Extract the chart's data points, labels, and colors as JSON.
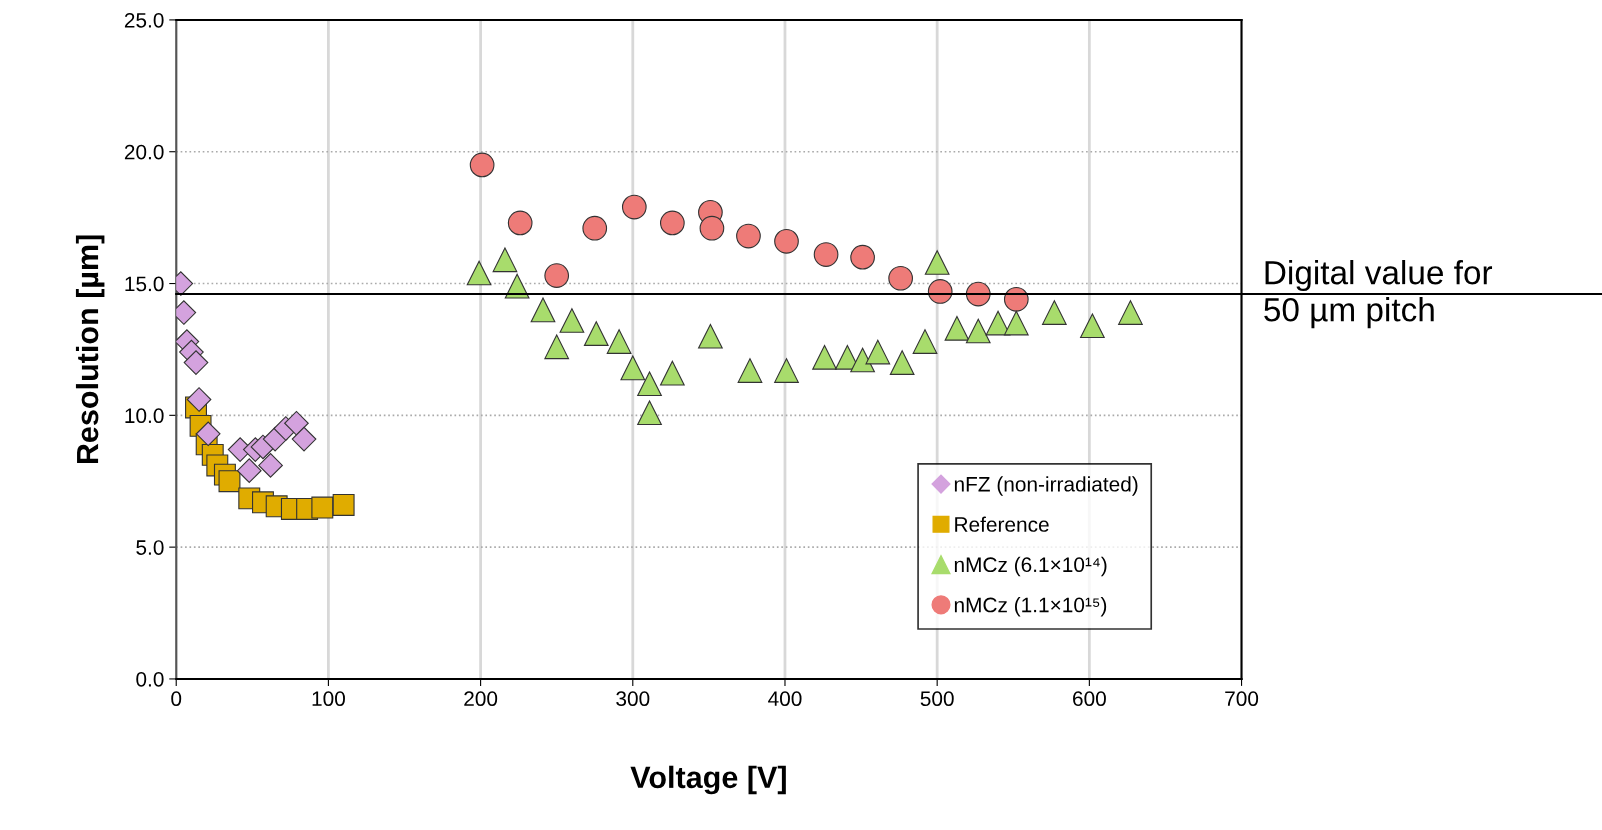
{
  "chart_data": {
    "type": "scatter",
    "xlabel": "Voltage [V]",
    "ylabel": "Resolution [µm]",
    "xlim": [
      0,
      700
    ],
    "xticks": [
      0,
      100,
      200,
      300,
      400,
      500,
      600,
      700
    ],
    "ylim": [
      0,
      25
    ],
    "yticks": [
      {
        "value": 0,
        "label": "0.0"
      },
      {
        "value": 5,
        "label": "5.0"
      },
      {
        "value": 10,
        "label": "10.0"
      },
      {
        "value": 15,
        "label": "15.0"
      },
      {
        "value": 20,
        "label": "20.0"
      },
      {
        "value": 25,
        "label": "25.0"
      }
    ],
    "grid": true,
    "legend": "bottom right",
    "ref_lines": [
      {
        "axis": "y",
        "value": 14.6,
        "label": "Digital value for\n50 µm pitch",
        "color": "#000000",
        "line_style": "solid"
      }
    ],
    "series": [
      {
        "name": "nFZ (non-irradiated)",
        "color": "#d4a2de",
        "marker": "diamond",
        "x": [
          3,
          5,
          7,
          10,
          13,
          15,
          21,
          42,
          48,
          52,
          57,
          62,
          65,
          72,
          79,
          84
        ],
        "values": [
          15.0,
          13.9,
          12.8,
          12.4,
          12.0,
          10.6,
          9.3,
          8.7,
          7.9,
          8.7,
          8.8,
          8.1,
          9.1,
          9.5,
          9.7,
          9.1
        ]
      },
      {
        "name": "Reference",
        "color": "#e0ac00",
        "marker": "square",
        "x": [
          13,
          16,
          20,
          24,
          27,
          32,
          35,
          48,
          57,
          66,
          76,
          86,
          96,
          110
        ],
        "values": [
          10.3,
          9.6,
          8.9,
          8.5,
          8.1,
          7.75,
          7.5,
          6.85,
          6.7,
          6.55,
          6.45,
          6.45,
          6.5,
          6.6
        ]
      },
      {
        "name": "nMCz (6.1×10¹⁴)",
        "color": "#a8dc6c",
        "marker": "triangle",
        "x": [
          199,
          216,
          224,
          241,
          250,
          260,
          276,
          291,
          300,
          311,
          311,
          326,
          351,
          377,
          401,
          426,
          441,
          451,
          461,
          477,
          492,
          500,
          513,
          527,
          540,
          552,
          577,
          602,
          627
        ],
        "values": [
          15.4,
          15.9,
          14.9,
          14.0,
          12.6,
          13.6,
          13.1,
          12.8,
          11.8,
          11.2,
          10.1,
          11.6,
          13.0,
          11.7,
          11.7,
          12.2,
          12.2,
          12.1,
          12.4,
          12.0,
          12.8,
          15.8,
          13.3,
          13.2,
          13.5,
          13.5,
          13.9,
          13.4,
          13.9
        ]
      },
      {
        "name": "nMCz (1.1×10¹⁵)",
        "color": "#ee7b78",
        "marker": "circle",
        "x": [
          201,
          226,
          250,
          275,
          301,
          326,
          351,
          352,
          376,
          401,
          427,
          451,
          476,
          502,
          527,
          552
        ],
        "values": [
          19.5,
          17.3,
          15.3,
          17.1,
          17.9,
          17.3,
          17.7,
          17.1,
          16.8,
          16.6,
          16.1,
          16.0,
          15.2,
          14.7,
          14.6,
          14.4
        ]
      }
    ]
  }
}
